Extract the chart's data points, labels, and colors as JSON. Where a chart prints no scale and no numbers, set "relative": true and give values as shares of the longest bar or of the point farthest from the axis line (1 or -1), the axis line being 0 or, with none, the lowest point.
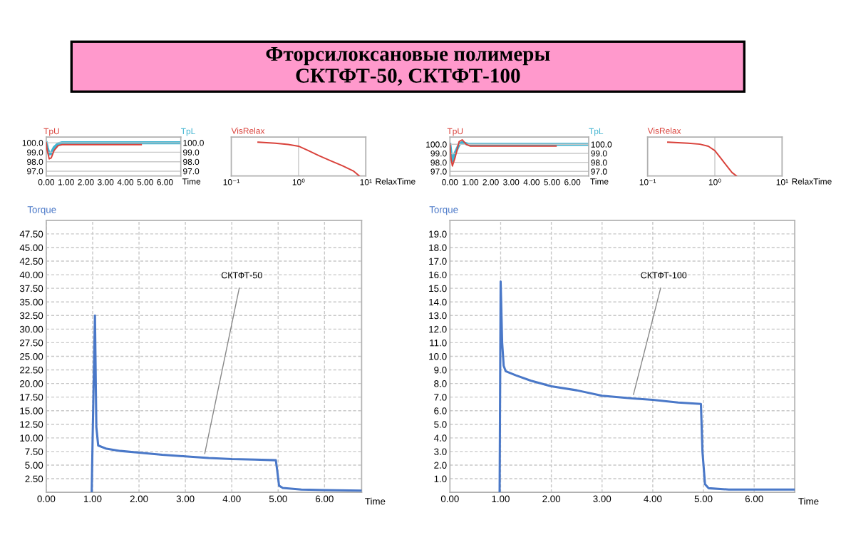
{
  "chart_data": [
    {
      "type": "other",
      "title": "Фторсилоксановые полимеры\nСКТФТ-50, СКТФТ-100"
    },
    {
      "type": "line",
      "ylabel": "TpU",
      "y2label": "TpL",
      "xlabel": "Time",
      "xlim": [
        0,
        6.8
      ],
      "xticks": [
        {
          "value": 0,
          "label": "0.00"
        },
        {
          "value": 1,
          "label": "1.00"
        },
        {
          "value": 2,
          "label": "2.00"
        },
        {
          "value": 3,
          "label": "3.00"
        },
        {
          "value": 4,
          "label": "4.00"
        },
        {
          "value": 5,
          "label": "5.00"
        },
        {
          "value": 6,
          "label": "6.00"
        }
      ],
      "ylim": [
        96.5,
        100.6
      ],
      "yticks": [
        {
          "value": 97,
          "label": "97.0"
        },
        {
          "value": 98,
          "label": "98.0"
        },
        {
          "value": 99,
          "label": "99.0"
        },
        {
          "value": 100,
          "label": "100.0"
        }
      ],
      "y2lim": [
        96.5,
        100.6
      ],
      "y2ticks": [
        {
          "value": 97,
          "label": "97.0"
        },
        {
          "value": 98,
          "label": "98.0"
        },
        {
          "value": 99,
          "label": "99.0"
        },
        {
          "value": 100,
          "label": "100.0"
        }
      ],
      "grid": "y",
      "series": [
        {
          "color": "#d9413a",
          "x": [
            0,
            0.05,
            0.15,
            0.25,
            0.4,
            0.6,
            0.8,
            1.0,
            2.0,
            3.0,
            4.0,
            4.8
          ],
          "values": [
            100,
            99.2,
            98.3,
            98.4,
            99.2,
            99.7,
            99.8,
            99.8,
            99.8,
            99.8,
            99.8,
            99.8
          ]
        },
        {
          "color": "#3fb3d0",
          "axis": "y2",
          "x": [
            0,
            0.05,
            0.15,
            0.25,
            0.4,
            0.6,
            0.8,
            1.0,
            2.0,
            4.0,
            6.0,
            6.8
          ],
          "values": [
            100,
            99.5,
            98.8,
            98.9,
            99.5,
            99.9,
            100,
            100,
            100,
            100,
            100,
            100
          ]
        }
      ]
    },
    {
      "type": "line",
      "relative": true,
      "title": "VisRelax",
      "xlabel": "RelaxTime",
      "log": "x",
      "xlim": [
        0.1,
        10
      ],
      "xticks": [
        {
          "value": 0.1,
          "label": "10⁻¹"
        },
        {
          "value": 1,
          "label": "10⁰"
        },
        {
          "value": 10,
          "label": "10¹"
        }
      ],
      "grid": true,
      "series": [
        {
          "color": "#d9413a",
          "x": [
            0.25,
            0.45,
            0.7,
            1.0,
            1.4,
            2.0,
            3.0,
            4.5,
            6.5,
            8.0
          ],
          "values": [
            1.0,
            0.97,
            0.93,
            0.88,
            0.75,
            0.6,
            0.45,
            0.3,
            0.15,
            0.0
          ]
        }
      ]
    },
    {
      "type": "line",
      "ylabel": "TpU",
      "y2label": "TpL",
      "xlabel": "Time",
      "xlim": [
        0,
        6.8
      ],
      "xticks": [
        {
          "value": 0,
          "label": "0.00"
        },
        {
          "value": 1,
          "label": "1.00"
        },
        {
          "value": 2,
          "label": "2.00"
        },
        {
          "value": 3,
          "label": "3.00"
        },
        {
          "value": 4,
          "label": "4.00"
        },
        {
          "value": 5,
          "label": "5.00"
        },
        {
          "value": 6,
          "label": "6.00"
        }
      ],
      "ylim": [
        96.5,
        100.8
      ],
      "yticks": [
        {
          "value": 97,
          "label": "97.0"
        },
        {
          "value": 98,
          "label": "98.0"
        },
        {
          "value": 99,
          "label": "99.0"
        },
        {
          "value": 100,
          "label": "100.0"
        }
      ],
      "y2lim": [
        96.5,
        100.8
      ],
      "y2ticks": [
        {
          "value": 97,
          "label": "97.0"
        },
        {
          "value": 98,
          "label": "98.0"
        },
        {
          "value": 99,
          "label": "99.0"
        },
        {
          "value": 100,
          "label": "100.0"
        }
      ],
      "grid": "y",
      "series": [
        {
          "color": "#d9413a",
          "x": [
            0,
            0.05,
            0.12,
            0.25,
            0.45,
            0.6,
            0.8,
            1.0,
            2.0,
            3.0,
            4.0,
            5.2
          ],
          "values": [
            100,
            98.5,
            97.6,
            98.5,
            100.3,
            100.5,
            100.0,
            99.8,
            99.8,
            99.8,
            99.8,
            99.8
          ]
        },
        {
          "color": "#3fb3d0",
          "axis": "y2",
          "x": [
            0,
            0.05,
            0.12,
            0.25,
            0.45,
            0.6,
            0.9,
            1.0,
            2.0,
            4.0,
            6.0,
            6.8
          ],
          "values": [
            100,
            99.0,
            98.1,
            99.0,
            100.0,
            100.2,
            100,
            100,
            100,
            100,
            100,
            100
          ]
        }
      ]
    },
    {
      "type": "line",
      "relative": true,
      "title": "VisRelax",
      "xlabel": "RelaxTime",
      "log": "x",
      "xlim": [
        0.1,
        10
      ],
      "xticks": [
        {
          "value": 0.1,
          "label": "10⁻¹"
        },
        {
          "value": 1,
          "label": "10⁰"
        },
        {
          "value": 10,
          "label": "10¹"
        }
      ],
      "grid": true,
      "series": [
        {
          "color": "#d9413a",
          "x": [
            0.2,
            0.4,
            0.6,
            0.8,
            1.0,
            1.2,
            1.5,
            1.8,
            2.1
          ],
          "values": [
            1.0,
            0.97,
            0.94,
            0.88,
            0.75,
            0.55,
            0.3,
            0.1,
            0.0
          ]
        }
      ]
    },
    {
      "type": "line",
      "ylabel": "Torque",
      "xlabel": "Time",
      "xlim": [
        0,
        6.8
      ],
      "xticks": [
        {
          "value": 0,
          "label": "0.00"
        },
        {
          "value": 1,
          "label": "1.00"
        },
        {
          "value": 2,
          "label": "2.00"
        },
        {
          "value": 3,
          "label": "3.00"
        },
        {
          "value": 4,
          "label": "4.00"
        },
        {
          "value": 5,
          "label": "5.00"
        },
        {
          "value": 6,
          "label": "6.00"
        }
      ],
      "ylim": [
        0,
        50
      ],
      "yticks": [
        {
          "value": 2.5,
          "label": "2.50"
        },
        {
          "value": 5,
          "label": "5.00"
        },
        {
          "value": 7.5,
          "label": "7.50"
        },
        {
          "value": 10,
          "label": "10.00"
        },
        {
          "value": 12.5,
          "label": "12.50"
        },
        {
          "value": 15,
          "label": "15.00"
        },
        {
          "value": 17.5,
          "label": "17.50"
        },
        {
          "value": 20,
          "label": "20.00"
        },
        {
          "value": 22.5,
          "label": "22.50"
        },
        {
          "value": 25,
          "label": "25.00"
        },
        {
          "value": 27.5,
          "label": "27.50"
        },
        {
          "value": 30,
          "label": "30.00"
        },
        {
          "value": 32.5,
          "label": "32.50"
        },
        {
          "value": 35,
          "label": "35.00"
        },
        {
          "value": 37.5,
          "label": "37.50"
        },
        {
          "value": 40,
          "label": "40.00"
        },
        {
          "value": 42.5,
          "label": "42.50"
        },
        {
          "value": 45,
          "label": "45.00"
        },
        {
          "value": 47.5,
          "label": "47.50"
        }
      ],
      "grid": true,
      "annotations": [
        {
          "text": "СКТФТ-50",
          "x": 3.4,
          "y": 6.4
        }
      ],
      "series": [
        {
          "color": "#4a78c8",
          "x": [
            0.98,
            1.0,
            1.05,
            1.08,
            1.12,
            1.3,
            1.6,
            2.0,
            2.5,
            3.0,
            3.5,
            4.0,
            4.5,
            4.95,
            4.98,
            5.02,
            5.1,
            5.5,
            6.0,
            6.8
          ],
          "values": [
            0,
            10,
            32.5,
            12,
            8.6,
            8.0,
            7.6,
            7.3,
            6.9,
            6.6,
            6.3,
            6.1,
            6.0,
            5.9,
            4,
            1.2,
            0.8,
            0.5,
            0.4,
            0.3
          ]
        }
      ]
    },
    {
      "type": "line",
      "ylabel": "Torque",
      "xlabel": "Time",
      "xlim": [
        0,
        6.8
      ],
      "xticks": [
        {
          "value": 0,
          "label": "0.00"
        },
        {
          "value": 1,
          "label": "1.00"
        },
        {
          "value": 2,
          "label": "2.00"
        },
        {
          "value": 3,
          "label": "3.00"
        },
        {
          "value": 4,
          "label": "4.00"
        },
        {
          "value": 5,
          "label": "5.00"
        },
        {
          "value": 6,
          "label": "6.00"
        }
      ],
      "ylim": [
        0,
        20
      ],
      "yticks": [
        {
          "value": 1,
          "label": "1.0"
        },
        {
          "value": 2,
          "label": "2.0"
        },
        {
          "value": 3,
          "label": "3.0"
        },
        {
          "value": 4,
          "label": "4.0"
        },
        {
          "value": 5,
          "label": "5.0"
        },
        {
          "value": 6,
          "label": "6.0"
        },
        {
          "value": 7,
          "label": "7.0"
        },
        {
          "value": 8,
          "label": "8.0"
        },
        {
          "value": 9,
          "label": "9.0"
        },
        {
          "value": 10,
          "label": "10.0"
        },
        {
          "value": 11,
          "label": "11.0"
        },
        {
          "value": 12,
          "label": "12.0"
        },
        {
          "value": 13,
          "label": "13.0"
        },
        {
          "value": 14,
          "label": "14.0"
        },
        {
          "value": 15,
          "label": "15.0"
        },
        {
          "value": 16,
          "label": "16.0"
        },
        {
          "value": 17,
          "label": "17.0"
        },
        {
          "value": 18,
          "label": "18.0"
        },
        {
          "value": 19,
          "label": "19.0"
        }
      ],
      "grid": true,
      "annotations": [
        {
          "text": "СКТФТ-100",
          "x": 3.6,
          "y": 6.9
        }
      ],
      "series": [
        {
          "color": "#4a78c8",
          "x": [
            0.98,
            1.0,
            1.03,
            1.06,
            1.1,
            1.3,
            1.6,
            2.0,
            2.5,
            3.0,
            3.6,
            4.0,
            4.5,
            4.95,
            4.98,
            5.03,
            5.1,
            5.5,
            6.0,
            6.8
          ],
          "values": [
            0,
            15.5,
            11,
            9.3,
            8.9,
            8.6,
            8.2,
            7.8,
            7.5,
            7.1,
            6.9,
            6.8,
            6.6,
            6.5,
            3,
            0.6,
            0.3,
            0.2,
            0.2,
            0.2
          ]
        }
      ]
    }
  ]
}
